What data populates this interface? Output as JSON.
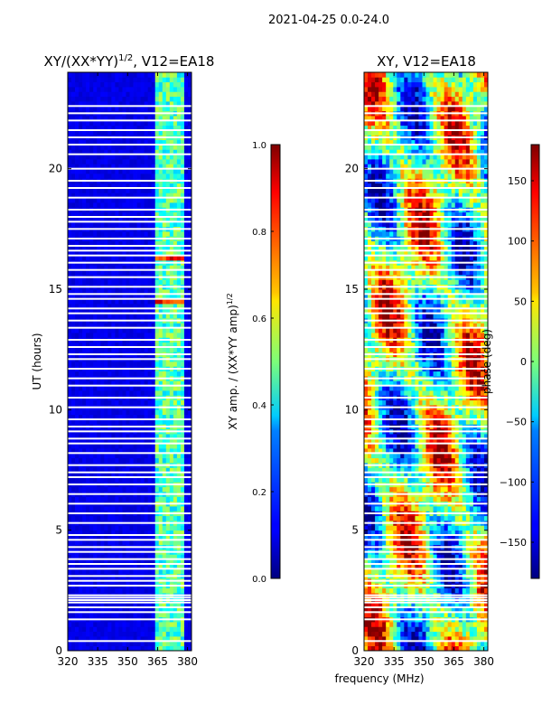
{
  "figure": {
    "suptitle": "2021-04-25 0.0-24.0",
    "shared_xlabel": "frequency (MHz)"
  },
  "chart_data": [
    {
      "type": "heatmap",
      "title": "XY/(XX*YY)",
      "title_superscript": "1/2",
      "title_suffix": ", V12=EA18",
      "ylabel": "UT (hours)",
      "xlim": [
        320,
        382
      ],
      "ylim": [
        0,
        24
      ],
      "xticks": [
        320,
        335,
        350,
        365,
        380
      ],
      "yticks": [
        0,
        5,
        10,
        15,
        20
      ],
      "colorbar": {
        "label": "XY amp. / (XX*YY amp)",
        "label_superscript": "1/2",
        "range": [
          0.0,
          1.0
        ],
        "ticks": [
          "0.0",
          "0.2",
          "0.4",
          "0.6",
          "0.8",
          "1.0"
        ],
        "tick_values": [
          0.0,
          0.2,
          0.4,
          0.6,
          0.8,
          1.0
        ],
        "colormap": "jet"
      },
      "background_level": 0.1,
      "rfi_band_mhz": [
        363,
        378
      ],
      "rfi_band_level": 0.4,
      "hot_rows_hours": [
        14.5,
        16.3
      ],
      "blank_rows_hours": [
        0.4,
        1.3,
        1.6,
        1.8,
        2.0,
        2.1,
        2.2,
        2.3,
        2.7,
        2.9,
        3.1,
        3.4,
        3.6,
        3.8,
        4.1,
        4.3,
        4.6,
        4.8,
        5.3,
        5.7,
        6.1,
        6.5,
        6.9,
        7.2,
        7.4,
        7.7,
        8.2,
        8.6,
        8.8,
        9.1,
        9.3,
        9.6,
        10.1,
        10.5,
        11.0,
        11.3,
        11.7,
        12.1,
        12.3,
        12.6,
        12.9,
        13.4,
        13.7,
        14.0,
        14.2,
        14.6,
        14.8,
        15.1,
        15.5,
        15.8,
        16.1,
        16.4,
        16.6,
        16.8,
        17.1,
        17.5,
        17.8,
        18.0,
        18.3,
        18.8,
        19.2,
        19.5,
        20.0,
        20.6,
        21.0,
        21.3,
        21.6,
        22.0,
        22.3,
        22.6
      ]
    },
    {
      "type": "heatmap",
      "title": "XY, V12=EA18",
      "xlim": [
        320,
        382
      ],
      "ylim": [
        0,
        24
      ],
      "xticks": [
        320,
        335,
        350,
        365,
        380
      ],
      "yticks": [
        0,
        5,
        10,
        15,
        20
      ],
      "colorbar": {
        "label": "phase (deg)",
        "range": [
          -180,
          180
        ],
        "ticks": [
          "150",
          "100",
          "50",
          "0",
          "−50",
          "−100",
          "−150"
        ],
        "tick_values": [
          150,
          100,
          50,
          0,
          -50,
          -100,
          -150
        ],
        "colormap": "jet"
      },
      "blank_rows_hours": [
        0.4,
        1.3,
        1.6,
        1.8,
        2.0,
        2.1,
        2.2,
        2.3,
        2.7,
        2.9,
        3.1,
        3.4,
        3.6,
        3.8,
        4.1,
        4.3,
        4.6,
        4.8,
        5.3,
        5.7,
        6.1,
        6.5,
        6.9,
        7.2,
        7.4,
        7.7,
        8.2,
        8.6,
        8.8,
        9.1,
        9.3,
        9.6,
        10.1,
        10.5,
        11.0,
        11.3,
        11.7,
        12.1,
        12.3,
        12.6,
        12.9,
        13.4,
        13.7,
        14.0,
        14.2,
        14.6,
        14.8,
        15.1,
        15.5,
        15.8,
        16.1,
        16.4,
        16.6,
        16.8,
        17.1,
        17.5,
        17.8,
        18.0,
        18.3,
        18.8,
        19.2,
        19.5,
        20.0,
        20.6,
        21.0,
        21.3,
        21.6,
        22.0,
        22.3,
        22.6
      ]
    }
  ]
}
